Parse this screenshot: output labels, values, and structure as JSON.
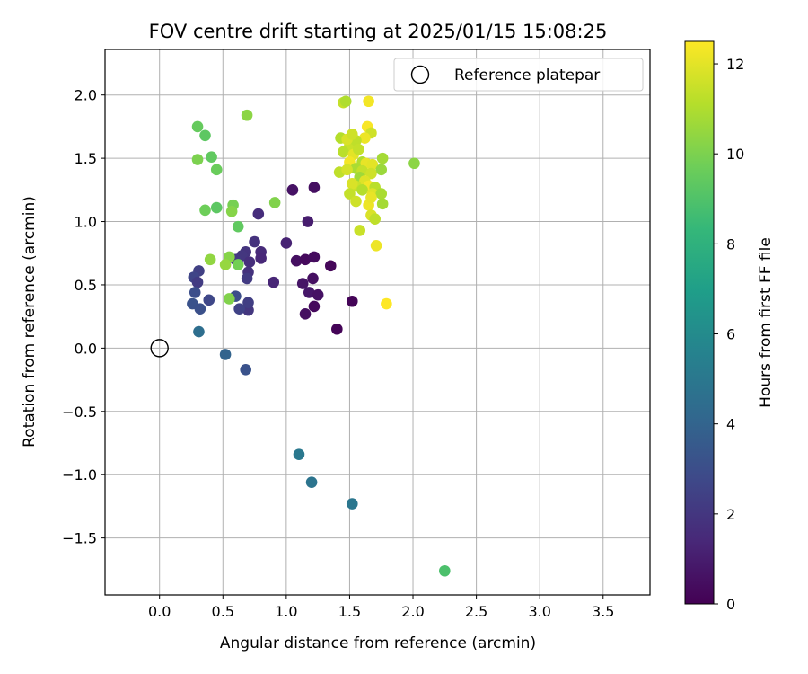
{
  "chart_data": {
    "type": "scatter",
    "title": "FOV centre drift starting at 2025/01/15 15:08:25",
    "xlabel": "Angular distance from reference (arcmin)",
    "ylabel": "Rotation from reference (arcmin)",
    "colorbar_label": "Hours from first FF file",
    "xlim": [
      -0.43,
      3.87
    ],
    "ylim": [
      -1.95,
      2.36
    ],
    "x_ticks": [
      {
        "value": 0.0,
        "label": "0.0"
      },
      {
        "value": 0.5,
        "label": "0.5"
      },
      {
        "value": 1.0,
        "label": "1.0"
      },
      {
        "value": 1.5,
        "label": "1.5"
      },
      {
        "value": 2.0,
        "label": "2.0"
      },
      {
        "value": 2.5,
        "label": "2.5"
      },
      {
        "value": 3.0,
        "label": "3.0"
      },
      {
        "value": 3.5,
        "label": "3.5"
      }
    ],
    "y_ticks": [
      {
        "value": -1.5,
        "label": "−1.5"
      },
      {
        "value": -1.0,
        "label": "−1.0"
      },
      {
        "value": -0.5,
        "label": "−0.5"
      },
      {
        "value": 0.0,
        "label": "0.0"
      },
      {
        "value": 0.5,
        "label": "0.5"
      },
      {
        "value": 1.0,
        "label": "1.0"
      },
      {
        "value": 1.5,
        "label": "1.5"
      },
      {
        "value": 2.0,
        "label": "2.0"
      }
    ],
    "colorbar_range": [
      0,
      12.5
    ],
    "colorbar_ticks": [
      {
        "value": 0,
        "label": "0"
      },
      {
        "value": 2,
        "label": "2"
      },
      {
        "value": 4,
        "label": "4"
      },
      {
        "value": 6,
        "label": "6"
      },
      {
        "value": 8,
        "label": "8"
      },
      {
        "value": 10,
        "label": "10"
      },
      {
        "value": 12,
        "label": "12"
      }
    ],
    "colormap": [
      "#440154",
      "#482878",
      "#3e4989",
      "#31688e",
      "#26828e",
      "#1f9e89",
      "#35b779",
      "#6ece58",
      "#b5de2b",
      "#fde725"
    ],
    "grid": true,
    "legend_placement": "top-right",
    "reference": {
      "name": "Reference platepar",
      "x": 0.0,
      "y": 0.0
    },
    "points": [
      {
        "x": 1.05,
        "y": 1.25,
        "t": 0.6
      },
      {
        "x": 1.22,
        "y": 1.27,
        "t": 0.5
      },
      {
        "x": 1.17,
        "y": 1.0,
        "t": 1.0
      },
      {
        "x": 1.08,
        "y": 0.69,
        "t": 0.5
      },
      {
        "x": 1.15,
        "y": 0.7,
        "t": 0.3
      },
      {
        "x": 1.22,
        "y": 0.72,
        "t": 0.4
      },
      {
        "x": 1.35,
        "y": 0.65,
        "t": 0.2
      },
      {
        "x": 1.13,
        "y": 0.51,
        "t": 0.7
      },
      {
        "x": 1.21,
        "y": 0.55,
        "t": 0.5
      },
      {
        "x": 1.18,
        "y": 0.44,
        "t": 0.8
      },
      {
        "x": 1.25,
        "y": 0.42,
        "t": 0.6
      },
      {
        "x": 1.22,
        "y": 0.33,
        "t": 0.3
      },
      {
        "x": 1.15,
        "y": 0.27,
        "t": 0.5
      },
      {
        "x": 1.52,
        "y": 0.37,
        "t": 0.1
      },
      {
        "x": 1.4,
        "y": 0.15,
        "t": 0.1
      },
      {
        "x": 1.0,
        "y": 0.83,
        "t": 1.2
      },
      {
        "x": 0.9,
        "y": 0.52,
        "t": 1.3
      },
      {
        "x": 0.78,
        "y": 1.06,
        "t": 1.6
      },
      {
        "x": 0.75,
        "y": 0.84,
        "t": 1.8
      },
      {
        "x": 0.8,
        "y": 0.76,
        "t": 1.5
      },
      {
        "x": 0.8,
        "y": 0.71,
        "t": 1.4
      },
      {
        "x": 0.68,
        "y": 0.76,
        "t": 1.9
      },
      {
        "x": 0.65,
        "y": 0.73,
        "t": 2.0
      },
      {
        "x": 0.71,
        "y": 0.68,
        "t": 1.7
      },
      {
        "x": 0.6,
        "y": 0.7,
        "t": 2.1
      },
      {
        "x": 0.7,
        "y": 0.6,
        "t": 1.8
      },
      {
        "x": 0.69,
        "y": 0.55,
        "t": 2.2
      },
      {
        "x": 0.7,
        "y": 0.3,
        "t": 2.0
      },
      {
        "x": 0.7,
        "y": 0.36,
        "t": 2.3
      },
      {
        "x": 0.63,
        "y": 0.31,
        "t": 2.5
      },
      {
        "x": 0.6,
        "y": 0.41,
        "t": 3.0
      },
      {
        "x": 0.31,
        "y": 0.61,
        "t": 2.4
      },
      {
        "x": 0.27,
        "y": 0.56,
        "t": 2.6
      },
      {
        "x": 0.3,
        "y": 0.52,
        "t": 2.2
      },
      {
        "x": 0.28,
        "y": 0.44,
        "t": 3.0
      },
      {
        "x": 0.39,
        "y": 0.38,
        "t": 2.7
      },
      {
        "x": 0.26,
        "y": 0.35,
        "t": 3.2
      },
      {
        "x": 0.32,
        "y": 0.31,
        "t": 3.1
      },
      {
        "x": 0.31,
        "y": 0.13,
        "t": 4.5
      },
      {
        "x": 0.52,
        "y": -0.05,
        "t": 4.0
      },
      {
        "x": 0.68,
        "y": -0.17,
        "t": 3.2
      },
      {
        "x": 1.1,
        "y": -0.84,
        "t": 5.0
      },
      {
        "x": 1.2,
        "y": -1.06,
        "t": 4.8
      },
      {
        "x": 1.52,
        "y": -1.23,
        "t": 4.9
      },
      {
        "x": 2.25,
        "y": -1.76,
        "t": 8.9
      },
      {
        "x": 0.3,
        "y": 1.75,
        "t": 9.5
      },
      {
        "x": 0.36,
        "y": 1.68,
        "t": 9.3
      },
      {
        "x": 0.69,
        "y": 1.84,
        "t": 10.3
      },
      {
        "x": 0.3,
        "y": 1.49,
        "t": 10.0
      },
      {
        "x": 0.41,
        "y": 1.51,
        "t": 9.4
      },
      {
        "x": 0.45,
        "y": 1.41,
        "t": 9.6
      },
      {
        "x": 0.36,
        "y": 1.09,
        "t": 9.7
      },
      {
        "x": 0.45,
        "y": 1.11,
        "t": 9.3
      },
      {
        "x": 0.58,
        "y": 1.13,
        "t": 9.9
      },
      {
        "x": 0.57,
        "y": 1.08,
        "t": 10.2
      },
      {
        "x": 0.62,
        "y": 0.96,
        "t": 9.4
      },
      {
        "x": 0.91,
        "y": 1.15,
        "t": 10.1
      },
      {
        "x": 0.4,
        "y": 0.7,
        "t": 10.4
      },
      {
        "x": 0.55,
        "y": 0.72,
        "t": 10.2
      },
      {
        "x": 0.52,
        "y": 0.66,
        "t": 10.5
      },
      {
        "x": 0.62,
        "y": 0.66,
        "t": 9.8
      },
      {
        "x": 0.55,
        "y": 0.39,
        "t": 10.1
      },
      {
        "x": 1.45,
        "y": 1.94,
        "t": 11.4
      },
      {
        "x": 1.47,
        "y": 1.95,
        "t": 11.0
      },
      {
        "x": 1.65,
        "y": 1.95,
        "t": 12.3
      },
      {
        "x": 1.64,
        "y": 1.75,
        "t": 12.4
      },
      {
        "x": 1.67,
        "y": 1.7,
        "t": 11.6
      },
      {
        "x": 1.62,
        "y": 1.66,
        "t": 12.2
      },
      {
        "x": 1.5,
        "y": 1.6,
        "t": 11.5
      },
      {
        "x": 1.55,
        "y": 1.64,
        "t": 11.3
      },
      {
        "x": 1.43,
        "y": 1.66,
        "t": 11.1
      },
      {
        "x": 1.48,
        "y": 1.65,
        "t": 11.8
      },
      {
        "x": 1.52,
        "y": 1.69,
        "t": 11.6
      },
      {
        "x": 1.45,
        "y": 1.55,
        "t": 11.2
      },
      {
        "x": 1.53,
        "y": 1.53,
        "t": 12.0
      },
      {
        "x": 1.57,
        "y": 1.57,
        "t": 11.4
      },
      {
        "x": 1.5,
        "y": 1.47,
        "t": 12.3
      },
      {
        "x": 1.6,
        "y": 1.47,
        "t": 11.0
      },
      {
        "x": 1.63,
        "y": 1.46,
        "t": 12.1
      },
      {
        "x": 1.68,
        "y": 1.45,
        "t": 12.0
      },
      {
        "x": 1.76,
        "y": 1.5,
        "t": 10.8
      },
      {
        "x": 1.75,
        "y": 1.41,
        "t": 10.6
      },
      {
        "x": 1.55,
        "y": 1.42,
        "t": 10.9
      },
      {
        "x": 1.6,
        "y": 1.4,
        "t": 11.4
      },
      {
        "x": 1.67,
        "y": 1.38,
        "t": 11.6
      },
      {
        "x": 1.42,
        "y": 1.39,
        "t": 11.3
      },
      {
        "x": 1.48,
        "y": 1.41,
        "t": 11.7
      },
      {
        "x": 1.58,
        "y": 1.35,
        "t": 10.7
      },
      {
        "x": 1.62,
        "y": 1.32,
        "t": 11.9
      },
      {
        "x": 1.55,
        "y": 1.28,
        "t": 11.5
      },
      {
        "x": 1.52,
        "y": 1.3,
        "t": 11.8
      },
      {
        "x": 1.65,
        "y": 1.28,
        "t": 12.3
      },
      {
        "x": 1.7,
        "y": 1.27,
        "t": 11.2
      },
      {
        "x": 1.6,
        "y": 1.25,
        "t": 11.1
      },
      {
        "x": 1.5,
        "y": 1.22,
        "t": 11.4
      },
      {
        "x": 1.68,
        "y": 1.22,
        "t": 11.9
      },
      {
        "x": 1.75,
        "y": 1.22,
        "t": 10.9
      },
      {
        "x": 1.55,
        "y": 1.16,
        "t": 11.6
      },
      {
        "x": 1.65,
        "y": 1.13,
        "t": 12.2
      },
      {
        "x": 1.67,
        "y": 1.19,
        "t": 12.1
      },
      {
        "x": 1.76,
        "y": 1.14,
        "t": 10.8
      },
      {
        "x": 1.67,
        "y": 1.05,
        "t": 11.8
      },
      {
        "x": 1.7,
        "y": 1.02,
        "t": 11.3
      },
      {
        "x": 1.58,
        "y": 0.93,
        "t": 11.5
      },
      {
        "x": 1.71,
        "y": 0.81,
        "t": 12.2
      },
      {
        "x": 2.01,
        "y": 1.46,
        "t": 10.3
      },
      {
        "x": 1.79,
        "y": 0.35,
        "t": 12.5
      }
    ]
  }
}
